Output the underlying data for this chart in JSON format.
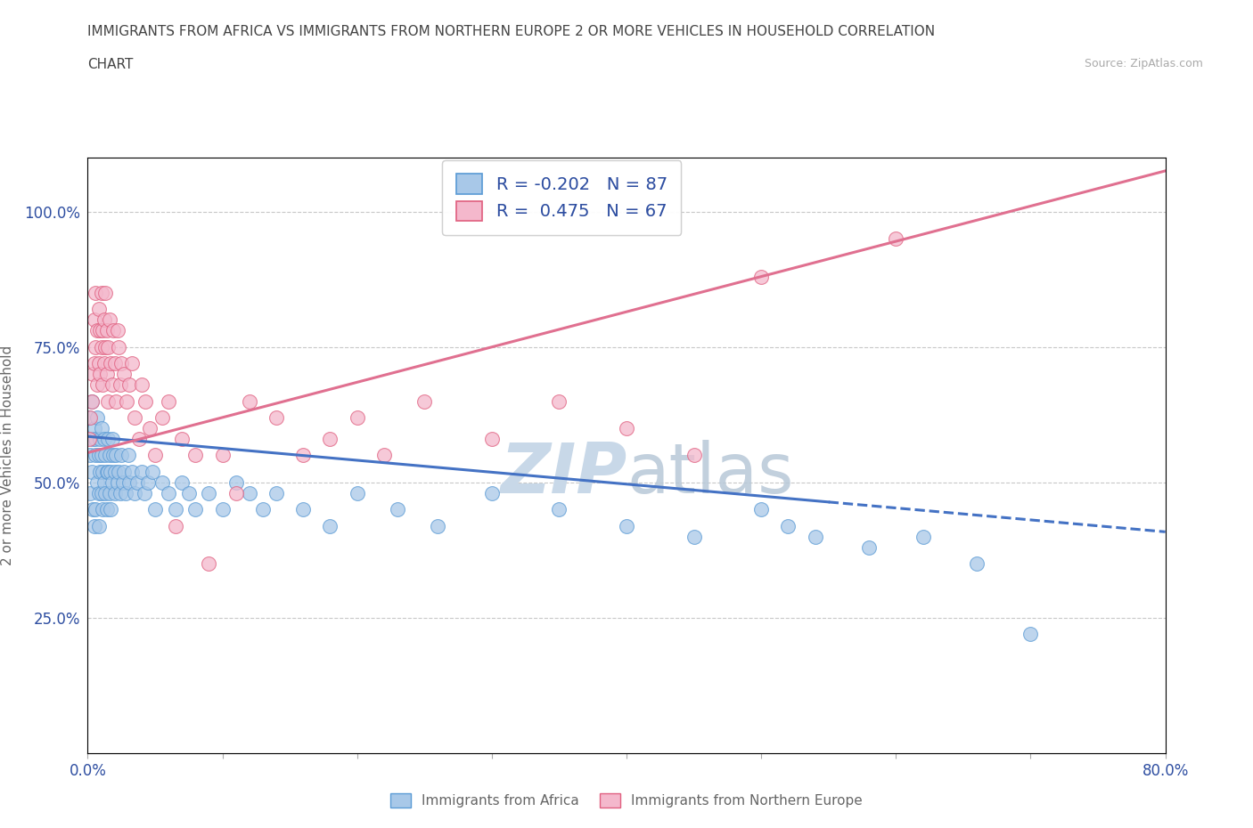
{
  "title_line1": "IMMIGRANTS FROM AFRICA VS IMMIGRANTS FROM NORTHERN EUROPE 2 OR MORE VEHICLES IN HOUSEHOLD CORRELATION",
  "title_line2": "CHART",
  "source_text": "Source: ZipAtlas.com",
  "ylabel": "2 or more Vehicles in Household",
  "xlim": [
    0.0,
    0.8
  ],
  "ylim": [
    0.0,
    1.1
  ],
  "xtick_positions": [
    0.0,
    0.1,
    0.2,
    0.3,
    0.4,
    0.5,
    0.6,
    0.7,
    0.8
  ],
  "ytick_positions": [
    0.25,
    0.5,
    0.75,
    1.0
  ],
  "ytick_labels": [
    "25.0%",
    "50.0%",
    "75.0%",
    "100.0%"
  ],
  "series_africa": {
    "label": "Immigrants from Africa",
    "color": "#a8c8e8",
    "edge_color": "#5b9bd5",
    "R": -0.202,
    "N": 87,
    "x": [
      0.001,
      0.002,
      0.002,
      0.003,
      0.003,
      0.004,
      0.004,
      0.005,
      0.005,
      0.006,
      0.006,
      0.006,
      0.007,
      0.007,
      0.008,
      0.008,
      0.008,
      0.009,
      0.009,
      0.01,
      0.01,
      0.01,
      0.011,
      0.011,
      0.012,
      0.012,
      0.013,
      0.013,
      0.014,
      0.014,
      0.015,
      0.015,
      0.016,
      0.016,
      0.017,
      0.017,
      0.018,
      0.018,
      0.019,
      0.02,
      0.02,
      0.021,
      0.022,
      0.023,
      0.024,
      0.025,
      0.026,
      0.027,
      0.028,
      0.03,
      0.031,
      0.033,
      0.035,
      0.037,
      0.04,
      0.042,
      0.045,
      0.048,
      0.05,
      0.055,
      0.06,
      0.065,
      0.07,
      0.075,
      0.08,
      0.09,
      0.1,
      0.11,
      0.12,
      0.13,
      0.14,
      0.16,
      0.18,
      0.2,
      0.23,
      0.26,
      0.3,
      0.35,
      0.4,
      0.45,
      0.5,
      0.52,
      0.54,
      0.58,
      0.62,
      0.66,
      0.7
    ],
    "y": [
      0.62,
      0.55,
      0.48,
      0.65,
      0.52,
      0.58,
      0.45,
      0.6,
      0.42,
      0.55,
      0.58,
      0.45,
      0.62,
      0.5,
      0.55,
      0.48,
      0.42,
      0.58,
      0.52,
      0.6,
      0.48,
      0.55,
      0.52,
      0.45,
      0.58,
      0.5,
      0.55,
      0.48,
      0.52,
      0.45,
      0.58,
      0.52,
      0.55,
      0.48,
      0.52,
      0.45,
      0.58,
      0.5,
      0.55,
      0.52,
      0.48,
      0.55,
      0.5,
      0.52,
      0.48,
      0.55,
      0.5,
      0.52,
      0.48,
      0.55,
      0.5,
      0.52,
      0.48,
      0.5,
      0.52,
      0.48,
      0.5,
      0.52,
      0.45,
      0.5,
      0.48,
      0.45,
      0.5,
      0.48,
      0.45,
      0.48,
      0.45,
      0.5,
      0.48,
      0.45,
      0.48,
      0.45,
      0.42,
      0.48,
      0.45,
      0.42,
      0.48,
      0.45,
      0.42,
      0.4,
      0.45,
      0.42,
      0.4,
      0.38,
      0.4,
      0.35,
      0.22
    ]
  },
  "series_northern_europe": {
    "label": "Immigrants from Northern Europe",
    "color": "#f4b8cc",
    "edge_color": "#e06080",
    "R": 0.475,
    "N": 67,
    "x": [
      0.001,
      0.002,
      0.003,
      0.004,
      0.005,
      0.005,
      0.006,
      0.006,
      0.007,
      0.007,
      0.008,
      0.008,
      0.009,
      0.009,
      0.01,
      0.01,
      0.011,
      0.011,
      0.012,
      0.012,
      0.013,
      0.013,
      0.014,
      0.014,
      0.015,
      0.015,
      0.016,
      0.017,
      0.018,
      0.019,
      0.02,
      0.021,
      0.022,
      0.023,
      0.024,
      0.025,
      0.027,
      0.029,
      0.031,
      0.033,
      0.035,
      0.038,
      0.04,
      0.043,
      0.046,
      0.05,
      0.055,
      0.06,
      0.065,
      0.07,
      0.08,
      0.09,
      0.1,
      0.11,
      0.12,
      0.14,
      0.16,
      0.18,
      0.2,
      0.22,
      0.25,
      0.3,
      0.35,
      0.4,
      0.45,
      0.5,
      0.6
    ],
    "y": [
      0.58,
      0.62,
      0.65,
      0.7,
      0.72,
      0.8,
      0.75,
      0.85,
      0.68,
      0.78,
      0.72,
      0.82,
      0.7,
      0.78,
      0.75,
      0.85,
      0.68,
      0.78,
      0.72,
      0.8,
      0.75,
      0.85,
      0.7,
      0.78,
      0.65,
      0.75,
      0.8,
      0.72,
      0.68,
      0.78,
      0.72,
      0.65,
      0.78,
      0.75,
      0.68,
      0.72,
      0.7,
      0.65,
      0.68,
      0.72,
      0.62,
      0.58,
      0.68,
      0.65,
      0.6,
      0.55,
      0.62,
      0.65,
      0.42,
      0.58,
      0.55,
      0.35,
      0.55,
      0.48,
      0.65,
      0.62,
      0.55,
      0.58,
      0.62,
      0.55,
      0.65,
      0.58,
      0.65,
      0.6,
      0.55,
      0.88,
      0.95
    ]
  },
  "africa_line_color": "#4472c4",
  "africa_line_solid_end": 0.55,
  "northern_europe_line_color": "#e07090",
  "legend_text_color": "#2e4ea1",
  "grid_color": "#c8c8c8",
  "watermark_color": "#c8d8e8",
  "background_color": "#ffffff"
}
